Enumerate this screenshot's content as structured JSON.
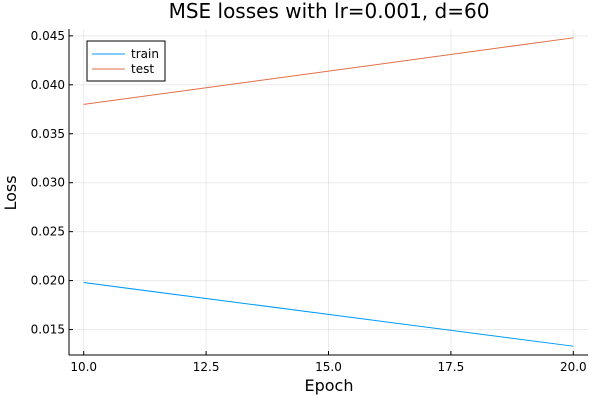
{
  "chart_data": {
    "type": "line",
    "title": "MSE losses with lr=0.001, d=60",
    "xlabel": "Epoch",
    "ylabel": "Loss",
    "xlim": [
      9.7,
      20.3
    ],
    "ylim": [
      0.0124,
      0.0457
    ],
    "xticks": [
      10.0,
      12.5,
      15.0,
      17.5,
      20.0
    ],
    "xtick_labels": [
      "10.0",
      "12.5",
      "15.0",
      "17.5",
      "20.0"
    ],
    "yticks": [
      0.015,
      0.02,
      0.025,
      0.03,
      0.035,
      0.04,
      0.045
    ],
    "ytick_labels": [
      "0.015",
      "0.020",
      "0.025",
      "0.030",
      "0.035",
      "0.040",
      "0.045"
    ],
    "grid": true,
    "legend_position": "top-left",
    "series": [
      {
        "name": "train",
        "color": "#009AFA",
        "x": [
          10,
          20
        ],
        "y": [
          0.0198,
          0.0133
        ]
      },
      {
        "name": "test",
        "color": "#E26F46",
        "x": [
          10,
          20
        ],
        "y": [
          0.038,
          0.0448
        ]
      }
    ]
  }
}
